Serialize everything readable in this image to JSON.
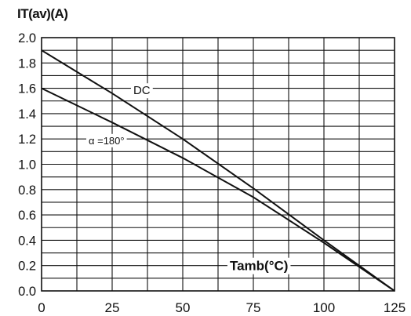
{
  "chart_data": {
    "type": "line",
    "ylabel": "IT(av)(A)",
    "xlabel": "Tamb(°C)",
    "xlim": [
      0,
      125
    ],
    "ylim": [
      0,
      2.0
    ],
    "x_ticks": [
      "0",
      "25",
      "50",
      "75",
      "100",
      "125"
    ],
    "y_ticks": [
      "0.0",
      "0.2",
      "0.4",
      "0.6",
      "0.8",
      "1.0",
      "1.2",
      "1.4",
      "1.6",
      "1.8",
      "2.0"
    ],
    "grid": true,
    "series": [
      {
        "name": "DC",
        "x": [
          0,
          25,
          50,
          75,
          100,
          125
        ],
        "y": [
          1.9,
          1.56,
          1.2,
          0.81,
          0.4,
          0.0
        ]
      },
      {
        "name": "α =180°",
        "x": [
          0,
          25,
          50,
          75,
          100,
          125
        ],
        "y": [
          1.6,
          1.33,
          1.05,
          0.74,
          0.38,
          0.0
        ]
      }
    ],
    "colors": {
      "line": "#111111",
      "grid": "#111111",
      "background": "#ffffff"
    }
  }
}
